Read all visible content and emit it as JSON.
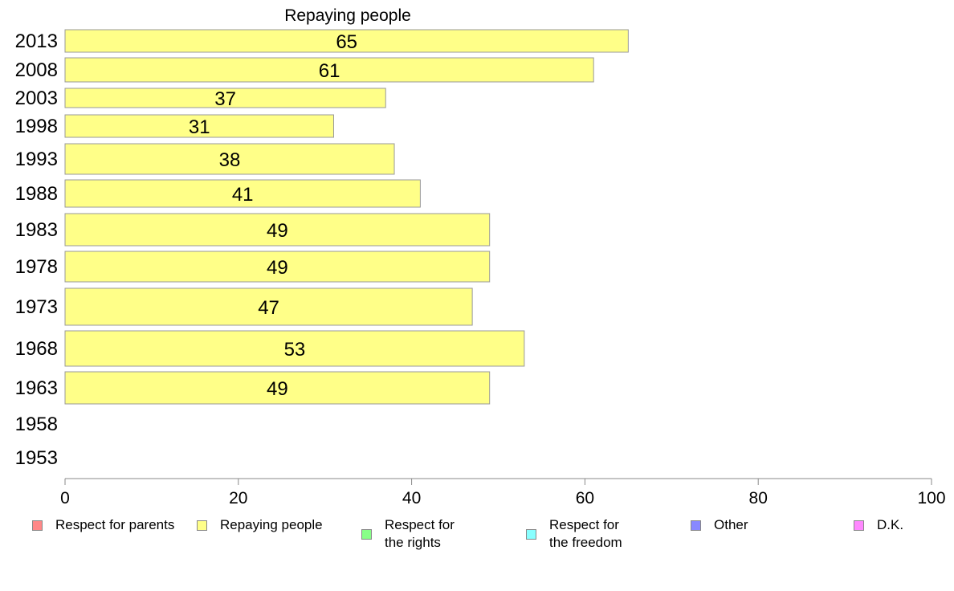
{
  "chart_data": {
    "type": "bar",
    "orientation": "horizontal",
    "title": "Repaying people",
    "categories": [
      "2013",
      "2008",
      "2003",
      "1998",
      "1993",
      "1988",
      "1983",
      "1978",
      "1973",
      "1968",
      "1963",
      "1958",
      "1953"
    ],
    "values": [
      65,
      61,
      37,
      31,
      38,
      41,
      49,
      49,
      47,
      53,
      49,
      null,
      null
    ],
    "xlim": [
      0,
      100
    ],
    "xticks": [
      "0",
      "20",
      "40",
      "60",
      "80",
      "100"
    ],
    "grid": false,
    "bar_color": "#ffff88",
    "bar_edge_color": "#999999",
    "legend_position": "bottom",
    "legend": [
      {
        "label": "Respect for parents",
        "color": "#ff8888"
      },
      {
        "label": "Repaying people",
        "color": "#ffff88"
      },
      {
        "label": "Respect for\nthe rights",
        "color": "#88ff88"
      },
      {
        "label": "Respect for\nthe freedom",
        "color": "#88ffff"
      },
      {
        "label": "Other",
        "color": "#8888ff"
      },
      {
        "label": "D.K.",
        "color": "#ff88ff"
      }
    ]
  }
}
